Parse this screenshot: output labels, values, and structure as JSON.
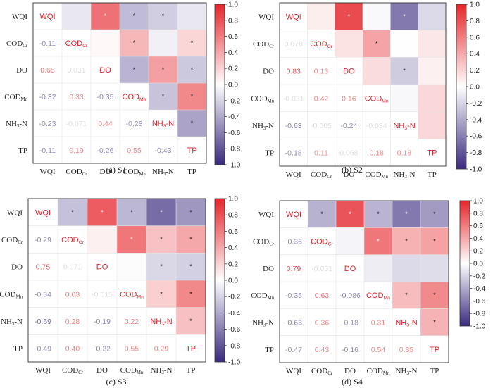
{
  "variables": [
    {
      "main": "WQI",
      "sub": ""
    },
    {
      "main": "COD",
      "sub": "Cr"
    },
    {
      "main": "DO",
      "sub": ""
    },
    {
      "main": "COD",
      "sub": "Mn"
    },
    {
      "main": "NH",
      "sub": "3",
      "tail": "-N"
    },
    {
      "main": "TP",
      "sub": ""
    }
  ],
  "colorbar": {
    "ticks": [
      "1.0",
      "0.8",
      "0.6",
      "0.4",
      "0.2",
      "0.0",
      "-0.2",
      "-0.4",
      "-0.6",
      "-0.8",
      "-1.0"
    ],
    "colors": {
      "neg": "#3b2a7e",
      "mid": "#ffffff",
      "pos": "#e5262b"
    }
  },
  "chart_data": [
    {
      "type": "heatmap",
      "title": "(a) S1",
      "lower_labels": [
        [
          null,
          null,
          null,
          null,
          null,
          null
        ],
        [
          "-0.11",
          null,
          null,
          null,
          null,
          null
        ],
        [
          "0.65",
          "0.031",
          null,
          null,
          null,
          null
        ],
        [
          "-0.32",
          "0.33",
          "-0.35",
          null,
          null,
          null
        ],
        [
          "-0.23",
          "-0.071",
          "0.44",
          "-0.28",
          null,
          null
        ],
        [
          "-0.11",
          "0.19",
          "-0.26",
          "0.55",
          "-0.43",
          null
        ]
      ],
      "significant": [
        [
          0,
          2
        ],
        [
          0,
          3
        ],
        [
          0,
          4
        ],
        [
          1,
          3
        ],
        [
          1,
          5
        ],
        [
          2,
          3
        ],
        [
          2,
          4
        ],
        [
          2,
          5
        ],
        [
          3,
          4
        ],
        [
          3,
          5
        ],
        [
          4,
          5
        ]
      ]
    },
    {
      "type": "heatmap",
      "title": "(b) S2",
      "lower_labels": [
        [
          null,
          null,
          null,
          null,
          null,
          null
        ],
        [
          "0.078",
          null,
          null,
          null,
          null,
          null
        ],
        [
          "0.83",
          "0.13",
          null,
          null,
          null,
          null
        ],
        [
          "-0.031",
          "0.42",
          "0.16",
          null,
          null,
          null
        ],
        [
          "-0.63",
          "-0.005",
          "-0.24",
          "-0.034",
          null,
          null
        ],
        [
          "-0.18",
          "0.11",
          "0.068",
          "0.18",
          "0.18",
          null
        ]
      ],
      "significant": [
        [
          0,
          2
        ],
        [
          0,
          4
        ],
        [
          1,
          3
        ],
        [
          2,
          4
        ]
      ]
    },
    {
      "type": "heatmap",
      "title": "(c) S3",
      "lower_labels": [
        [
          null,
          null,
          null,
          null,
          null,
          null
        ],
        [
          "-0.29",
          null,
          null,
          null,
          null,
          null
        ],
        [
          "0.75",
          "0.071",
          null,
          null,
          null,
          null
        ],
        [
          "-0.34",
          "0.63",
          "-0.015",
          null,
          null,
          null
        ],
        [
          "-0.69",
          "0.28",
          "-0.19",
          "0.22",
          null,
          null
        ],
        [
          "-0.49",
          "0.40",
          "-0.22",
          "0.55",
          "0.29",
          null
        ]
      ],
      "significant": [
        [
          0,
          1
        ],
        [
          0,
          2
        ],
        [
          0,
          3
        ],
        [
          0,
          4
        ],
        [
          0,
          5
        ],
        [
          1,
          3
        ],
        [
          1,
          4
        ],
        [
          1,
          5
        ],
        [
          2,
          4
        ],
        [
          2,
          5
        ],
        [
          3,
          4
        ],
        [
          3,
          5
        ],
        [
          4,
          5
        ]
      ]
    },
    {
      "type": "heatmap",
      "title": "(d) S4",
      "lower_labels": [
        [
          null,
          null,
          null,
          null,
          null,
          null
        ],
        [
          "-0.36",
          null,
          null,
          null,
          null,
          null
        ],
        [
          "0.79",
          "-0.051",
          null,
          null,
          null,
          null
        ],
        [
          "-0.35",
          "0.63",
          "-0.086",
          null,
          null,
          null
        ],
        [
          "-0.63",
          "0.36",
          "-0.18",
          "0.31",
          null,
          null
        ],
        [
          "-0.47",
          "0.43",
          "-0.16",
          "0.54",
          "0.35",
          null
        ]
      ],
      "significant": [
        [
          0,
          1
        ],
        [
          0,
          2
        ],
        [
          0,
          3
        ],
        [
          0,
          4
        ],
        [
          0,
          5
        ],
        [
          1,
          3
        ],
        [
          1,
          4
        ],
        [
          1,
          5
        ],
        [
          3,
          4
        ],
        [
          3,
          5
        ],
        [
          4,
          5
        ]
      ]
    }
  ]
}
